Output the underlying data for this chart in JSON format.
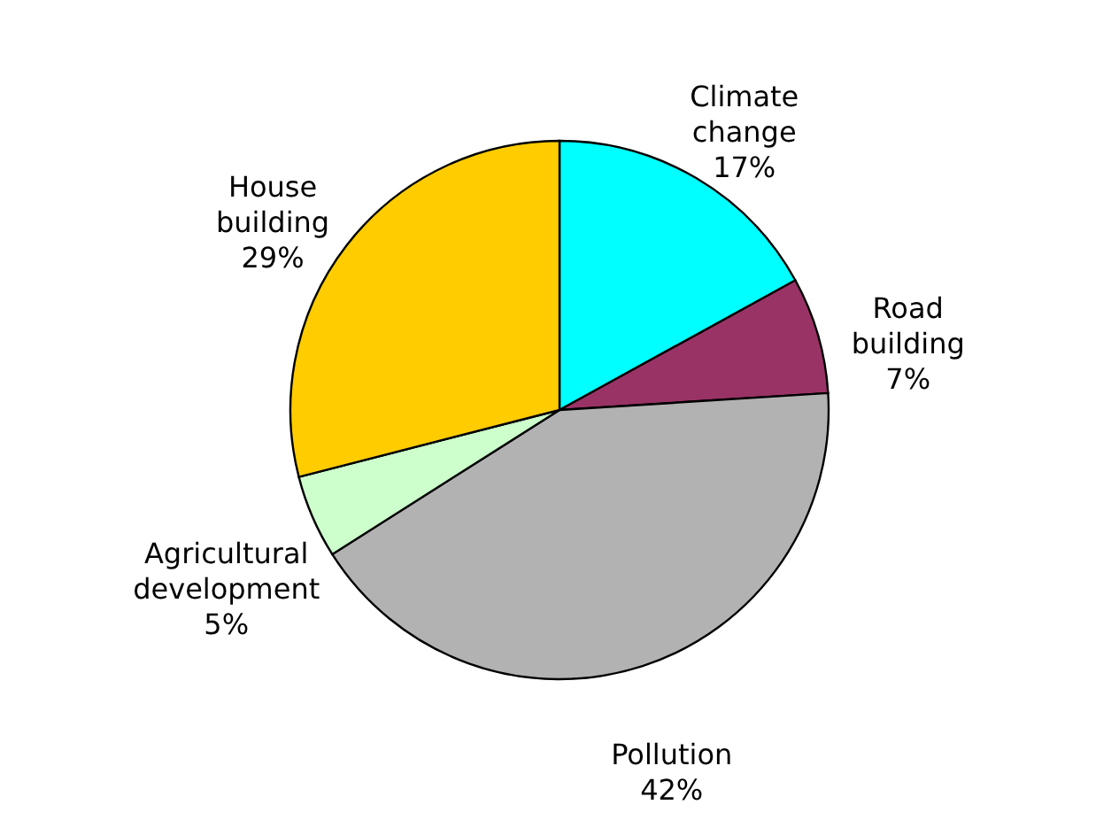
{
  "chart_data": {
    "type": "pie",
    "categories": [
      "Climate change",
      "Road building",
      "Pollution",
      "Agricultural development",
      "House building"
    ],
    "values": [
      17,
      7,
      42,
      5,
      29
    ],
    "colors": [
      "#00ffff",
      "#993366",
      "#b2b2b2",
      "#ccffcc",
      "#ffcc00"
    ],
    "value_labels": [
      "17%",
      "7%",
      "42%",
      "5%",
      "29%"
    ]
  }
}
